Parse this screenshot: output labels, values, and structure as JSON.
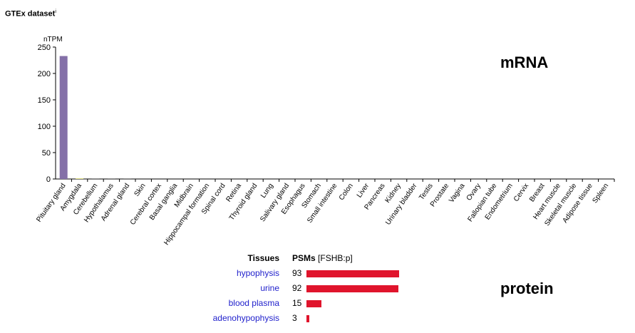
{
  "header": {
    "title": "GTEx dataset",
    "superscript": "i"
  },
  "mrna_label": "mRNA",
  "protein_label": "protein",
  "chart_data": {
    "type": "bar",
    "ylabel": "nTPM",
    "ylim": [
      0,
      250
    ],
    "yticks": [
      0,
      50,
      100,
      150,
      200,
      250
    ],
    "categories": [
      "Pituitary gland",
      "Amygdala",
      "Cerebellum",
      "Hypothalamus",
      "Adrenal gland",
      "Skin",
      "Cerebral cortex",
      "Basal ganglia",
      "Midbrain",
      "Hippocampal formation",
      "Spinal cord",
      "Retina",
      "Thyroid gland",
      "Lung",
      "Salivary gland",
      "Esophagus",
      "Stomach",
      "Small intestine",
      "Colon",
      "Liver",
      "Pancreas",
      "Kidney",
      "Urinary bladder",
      "Testis",
      "Prostate",
      "Vagina",
      "Ovary",
      "Fallopian tube",
      "Endometrium",
      "Cervix",
      "Breast",
      "Heart muscle",
      "Skeletal muscle",
      "Adipose tissue",
      "Spleen"
    ],
    "values": [
      233,
      0.8,
      0.1,
      0.1,
      0.1,
      0,
      0,
      0,
      0,
      0,
      0,
      0,
      0,
      0,
      0,
      0,
      0,
      0,
      0,
      0,
      0,
      0,
      0,
      0,
      0,
      0,
      0,
      0,
      0,
      0,
      0,
      0,
      0,
      0,
      0
    ],
    "colors": [
      "#8470a8",
      "#c9c730",
      "#dddddd",
      "#dddddd",
      "#dddddd",
      "#dddddd",
      "#dddddd",
      "#dddddd",
      "#dddddd",
      "#dddddd",
      "#dddddd",
      "#dddddd",
      "#dddddd",
      "#dddddd",
      "#dddddd",
      "#dddddd",
      "#dddddd",
      "#dddddd",
      "#dddddd",
      "#dddddd",
      "#dddddd",
      "#dddddd",
      "#dddddd",
      "#dddddd",
      "#dddddd",
      "#dddddd",
      "#dddddd",
      "#dddddd",
      "#dddddd",
      "#dddddd",
      "#dddddd",
      "#dddddd",
      "#dddddd",
      "#dddddd",
      "#dddddd"
    ]
  },
  "protein_table": {
    "col_tissues": "Tissues",
    "col_psms": "PSMs",
    "col_psms_suffix": "[FSHB:p]",
    "bar_color": "#e0142c",
    "max_value": 93,
    "rows": [
      {
        "tissue": "hypophysis",
        "value": "93",
        "num": 93
      },
      {
        "tissue": "urine",
        "value": "92",
        "num": 92
      },
      {
        "tissue": "blood plasma",
        "value": "15",
        "num": 15
      },
      {
        "tissue": "adenohypophysis",
        "value": "3",
        "num": 3
      }
    ]
  }
}
